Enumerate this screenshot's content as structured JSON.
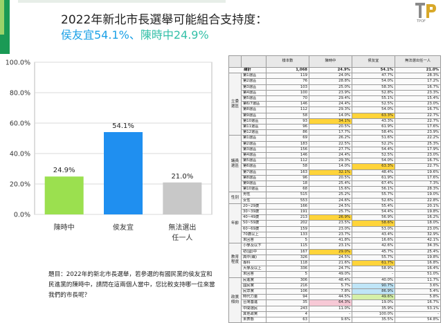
{
  "header": {
    "title": "2022年新北市長選舉可能組合支持度：",
    "subtitle_a": "侯友宜54.1%",
    "subtitle_sep": "、",
    "subtitle_b": "陳時中24.9%"
  },
  "colors": {
    "green": "#9be04f",
    "blue": "#1f8ff0",
    "gray": "#c8c8c8",
    "highlight": "#ffd43a"
  },
  "logo": {
    "icon": "tpof-logo-icon",
    "text": "TPOF"
  },
  "chart_data": {
    "type": "bar",
    "categories": [
      "陳時中",
      "侯友宜",
      "無法選出任一人"
    ],
    "category_lines": [
      [
        "陳時中"
      ],
      [
        "侯友宜"
      ],
      [
        "無法選出",
        "任一人"
      ]
    ],
    "values": [
      24.9,
      54.1,
      21.0
    ],
    "value_labels": [
      "24.9%",
      "54.1%",
      "21.0%"
    ],
    "colors": [
      "#9be04f",
      "#1f8ff0",
      "#c8c8c8"
    ],
    "ylim": [
      0,
      100
    ],
    "yticks": [
      "0.0%",
      "20.0%",
      "40.0%",
      "60.0%",
      "80.0%",
      "100.0%"
    ],
    "grid": true
  },
  "question": "題目：2022年的新北市長選舉，若參選的有國民黨的侯友宜和民進黨的陳時中，請問在這兩個人當中，您比較支持哪一位來當我們的市長呢？",
  "table": {
    "headers": [
      "",
      "",
      "樣本數",
      "陳時中",
      "侯友宜",
      "無法選出任一人"
    ],
    "total": {
      "label": "總計",
      "n": "1,068",
      "a": "24.9%",
      "b": "54.1%",
      "c": "21.0%"
    },
    "groups": [
      {
        "name": "立委選區",
        "rows": [
          {
            "label": "第1選區",
            "n": "119",
            "a": "24.0%",
            "b": "47.7%",
            "c": "28.3%"
          },
          {
            "label": "第2選區",
            "n": "76",
            "a": "28.8%",
            "b": "54.0%",
            "c": "17.2%"
          },
          {
            "label": "第3選區",
            "n": "103",
            "a": "25.0%",
            "b": "58.3%",
            "c": "16.7%"
          },
          {
            "label": "第4選區",
            "n": "100",
            "a": "23.9%",
            "b": "52.8%",
            "c": "23.3%"
          },
          {
            "label": "第5選區",
            "n": "70",
            "a": "29.4%",
            "b": "55.1%",
            "c": "15.4%"
          },
          {
            "label": "第6/7選區",
            "n": "146",
            "a": "24.4%",
            "b": "52.5%",
            "c": "23.0%"
          },
          {
            "label": "第8選區",
            "n": "112",
            "a": "29.3%",
            "b": "54.0%",
            "c": "16.7%"
          },
          {
            "label": "第9選區",
            "n": "58",
            "a": "14.0%",
            "b": "63.3%",
            "c": "22.7%",
            "hl": "b"
          },
          {
            "label": "第10選區",
            "n": "93",
            "a": "34.1%",
            "b": "43.3%",
            "c": "22.7%",
            "hl": "a"
          },
          {
            "label": "第11選區",
            "n": "96",
            "a": "20.5%",
            "b": "61.9%",
            "c": "17.6%"
          },
          {
            "label": "第12選區",
            "n": "86",
            "a": "17.7%",
            "b": "58.4%",
            "c": "23.9%"
          }
        ]
      },
      {
        "name": "議員選區",
        "rows": [
          {
            "label": "第1選區",
            "n": "69",
            "a": "26.2%",
            "b": "51.6%",
            "c": "22.2%"
          },
          {
            "label": "第2選區",
            "n": "183",
            "a": "22.5%",
            "b": "52.2%",
            "c": "25.3%"
          },
          {
            "label": "第3選區",
            "n": "156",
            "a": "27.7%",
            "b": "54.4%",
            "c": "17.9%"
          },
          {
            "label": "第4選區",
            "n": "146",
            "a": "24.4%",
            "b": "52.5%",
            "c": "23.0%"
          },
          {
            "label": "第5選區",
            "n": "112",
            "a": "29.3%",
            "b": "54.0%",
            "c": "16.7%"
          },
          {
            "label": "第6選區",
            "n": "58",
            "a": "14.0%",
            "b": "63.3%",
            "c": "22.7%",
            "hl": "b"
          },
          {
            "label": "第7選區",
            "n": "163",
            "a": "32.1%",
            "b": "48.4%",
            "c": "19.6%",
            "hl": "a"
          },
          {
            "label": "第8選區",
            "n": "96",
            "a": "20.5%",
            "b": "61.9%",
            "c": "17.6%"
          },
          {
            "label": "第9選區",
            "n": "18",
            "a": "25.4%",
            "b": "67.4%",
            "c": "7.3%"
          },
          {
            "label": "第10選區",
            "n": "68",
            "a": "15.6%",
            "b": "56.1%",
            "c": "28.3%"
          }
        ]
      },
      {
        "name": "性別",
        "rows": [
          {
            "label": "男性",
            "n": "515",
            "a": "25.2%",
            "b": "55.7%",
            "c": "19.0%"
          },
          {
            "label": "女性",
            "n": "553",
            "a": "24.6%",
            "b": "52.6%",
            "c": "22.8%"
          }
        ]
      },
      {
        "name": "年齡",
        "rows": [
          {
            "label": "20~29歲",
            "n": "166",
            "a": "24.5%",
            "b": "55.4%",
            "c": "20.1%"
          },
          {
            "label": "30~39歲",
            "n": "191",
            "a": "25.7%",
            "b": "54.4%",
            "c": "19.8%"
          },
          {
            "label": "40~49歲",
            "n": "213",
            "a": "26.9%",
            "b": "56.9%",
            "c": "16.2%",
            "hl": "a"
          },
          {
            "label": "50~59歲",
            "n": "202",
            "a": "23.5%",
            "b": "58.6%",
            "c": "18.0%",
            "hl": "b"
          },
          {
            "label": "60~69歲",
            "n": "159",
            "a": "23.0%",
            "b": "53.0%",
            "c": "23.0%"
          },
          {
            "label": "70歲以上",
            "n": "133",
            "a": "23.7%",
            "b": "43.4%",
            "c": "32.9%"
          },
          {
            "label": "未回答",
            "n": "5",
            "a": "41.8%",
            "b": "16.6%",
            "c": "42.1%"
          }
        ]
      },
      {
        "name": "教育程度",
        "rows": [
          {
            "label": "小學及以下",
            "n": "115",
            "a": "23.1%",
            "b": "42.6%",
            "c": "34.3%"
          },
          {
            "label": "初(國)中",
            "n": "167",
            "a": "29.0%",
            "b": "45.7%",
            "c": "25.4%",
            "hl": "a"
          },
          {
            "label": "高中(職)",
            "n": "326",
            "a": "24.5%",
            "b": "55.7%",
            "c": "19.8%"
          },
          {
            "label": "專科",
            "n": "118",
            "a": "21.6%",
            "b": "61.7%",
            "c": "16.8%",
            "hl": "b"
          },
          {
            "label": "大學及以上",
            "n": "336",
            "a": "24.7%",
            "b": "58.9%",
            "c": "16.4%"
          },
          {
            "label": "未回答",
            "n": "5",
            "a": "49.0%",
            "b": "-",
            "c": "51.0%"
          }
        ]
      },
      {
        "name": "政黨傾向",
        "rows": [
          {
            "label": "民進黨",
            "n": "306",
            "a": "48.4%",
            "b": "40.0%",
            "c": "11.7%"
          },
          {
            "label": "國民黨",
            "n": "216",
            "a": "5.7%",
            "b": "90.7%",
            "c": "3.6%",
            "cell": {
              "b": "cB"
            }
          },
          {
            "label": "民眾黨",
            "n": "106",
            "a": "7.8%",
            "b": "86.9%",
            "c": "5.4%",
            "cell": {
              "b": "cB"
            }
          },
          {
            "label": "時代力量",
            "n": "94",
            "a": "44.5%",
            "b": "49.6%",
            "c": "5.8%",
            "cell": {
              "b": "cG"
            }
          },
          {
            "label": "台灣基進",
            "n": "35",
            "a": "64.3%",
            "b": "19.0%",
            "c": "16.7%",
            "cell": {
              "a": "cP"
            }
          },
          {
            "label": "中間選民",
            "n": "243",
            "a": "11.0%",
            "b": "35.9%",
            "c": "53.1%"
          },
          {
            "label": "其他政黨",
            "n": "4",
            "a": "-",
            "b": "100.0%",
            "c": "-"
          },
          {
            "label": "未表態",
            "n": "63",
            "a": "9.6%",
            "b": "35.5%",
            "c": "54.8%"
          }
        ]
      }
    ]
  }
}
